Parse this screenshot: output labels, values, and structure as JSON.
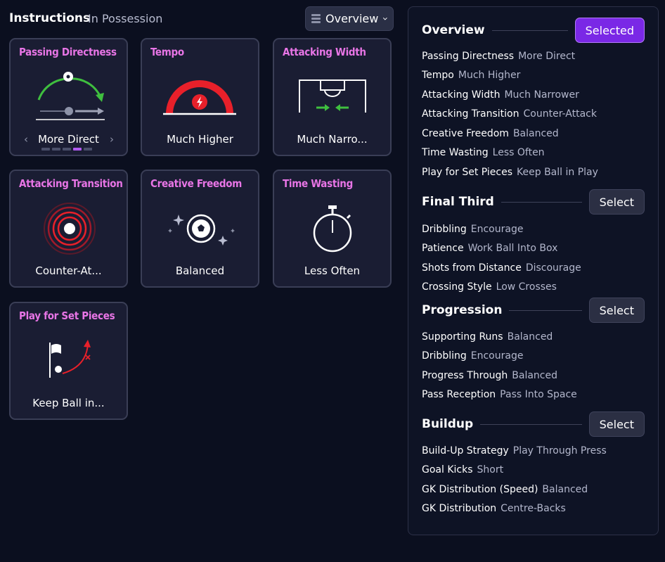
{
  "header": {
    "title": "Instructions",
    "subtitle": "In Possession",
    "view_label": "Overview"
  },
  "cards": {
    "passing_directness": {
      "title": "Passing Directness",
      "value": "More Direct",
      "nav_prev": "‹",
      "nav_next": "›",
      "selected_index": 3,
      "option_count": 5
    },
    "tempo": {
      "title": "Tempo",
      "value": "Much Higher"
    },
    "attacking_width": {
      "title": "Attacking Width",
      "value": "Much Narro..."
    },
    "attacking_transition": {
      "title": "Attacking Transition",
      "value": "Counter-At..."
    },
    "creative_freedom": {
      "title": "Creative Freedom",
      "value": "Balanced"
    },
    "time_wasting": {
      "title": "Time Wasting",
      "value": "Less Often"
    },
    "set_pieces": {
      "title": "Play for Set Pieces",
      "value": "Keep Ball in..."
    }
  },
  "panel": {
    "sections": [
      {
        "title": "Overview",
        "button": "Selected",
        "rows": [
          {
            "k": "Passing Directness",
            "v": "More Direct"
          },
          {
            "k": "Tempo",
            "v": "Much Higher"
          },
          {
            "k": "Attacking Width",
            "v": "Much Narrower"
          },
          {
            "k": "Attacking Transition",
            "v": "Counter-Attack"
          },
          {
            "k": "Creative Freedom",
            "v": "Balanced"
          },
          {
            "k": "Time Wasting",
            "v": "Less Often"
          },
          {
            "k": "Play for Set Pieces",
            "v": "Keep Ball in Play"
          }
        ]
      },
      {
        "title": "Final Third",
        "button": "Select",
        "rows": [
          {
            "k": "Dribbling",
            "v": "Encourage"
          },
          {
            "k": "Patience",
            "v": "Work Ball Into Box"
          },
          {
            "k": "Shots from Distance",
            "v": "Discourage"
          },
          {
            "k": "Crossing Style",
            "v": "Low Crosses"
          }
        ]
      },
      {
        "title": "Progression",
        "button": "Select",
        "rows": [
          {
            "k": "Supporting Runs",
            "v": "Balanced"
          },
          {
            "k": "Dribbling",
            "v": "Encourage"
          },
          {
            "k": "Progress Through",
            "v": "Balanced"
          },
          {
            "k": "Pass Reception",
            "v": "Pass Into Space"
          }
        ]
      },
      {
        "title": "Buildup",
        "button": "Select",
        "rows": [
          {
            "k": "Build-Up Strategy",
            "v": "Play Through Press"
          },
          {
            "k": "Goal Kicks",
            "v": "Short"
          },
          {
            "k": "GK Distribution (Speed)",
            "v": "Balanced"
          },
          {
            "k": "GK Distribution",
            "v": "Centre-Backs"
          }
        ]
      }
    ]
  },
  "colors": {
    "background": "#0b0f1f",
    "card": "#1a1d33",
    "card_title": "#e875e6",
    "accent_purple": "#7a28e6",
    "tempo_red": "#e8202a",
    "green": "#3fbf3f"
  }
}
